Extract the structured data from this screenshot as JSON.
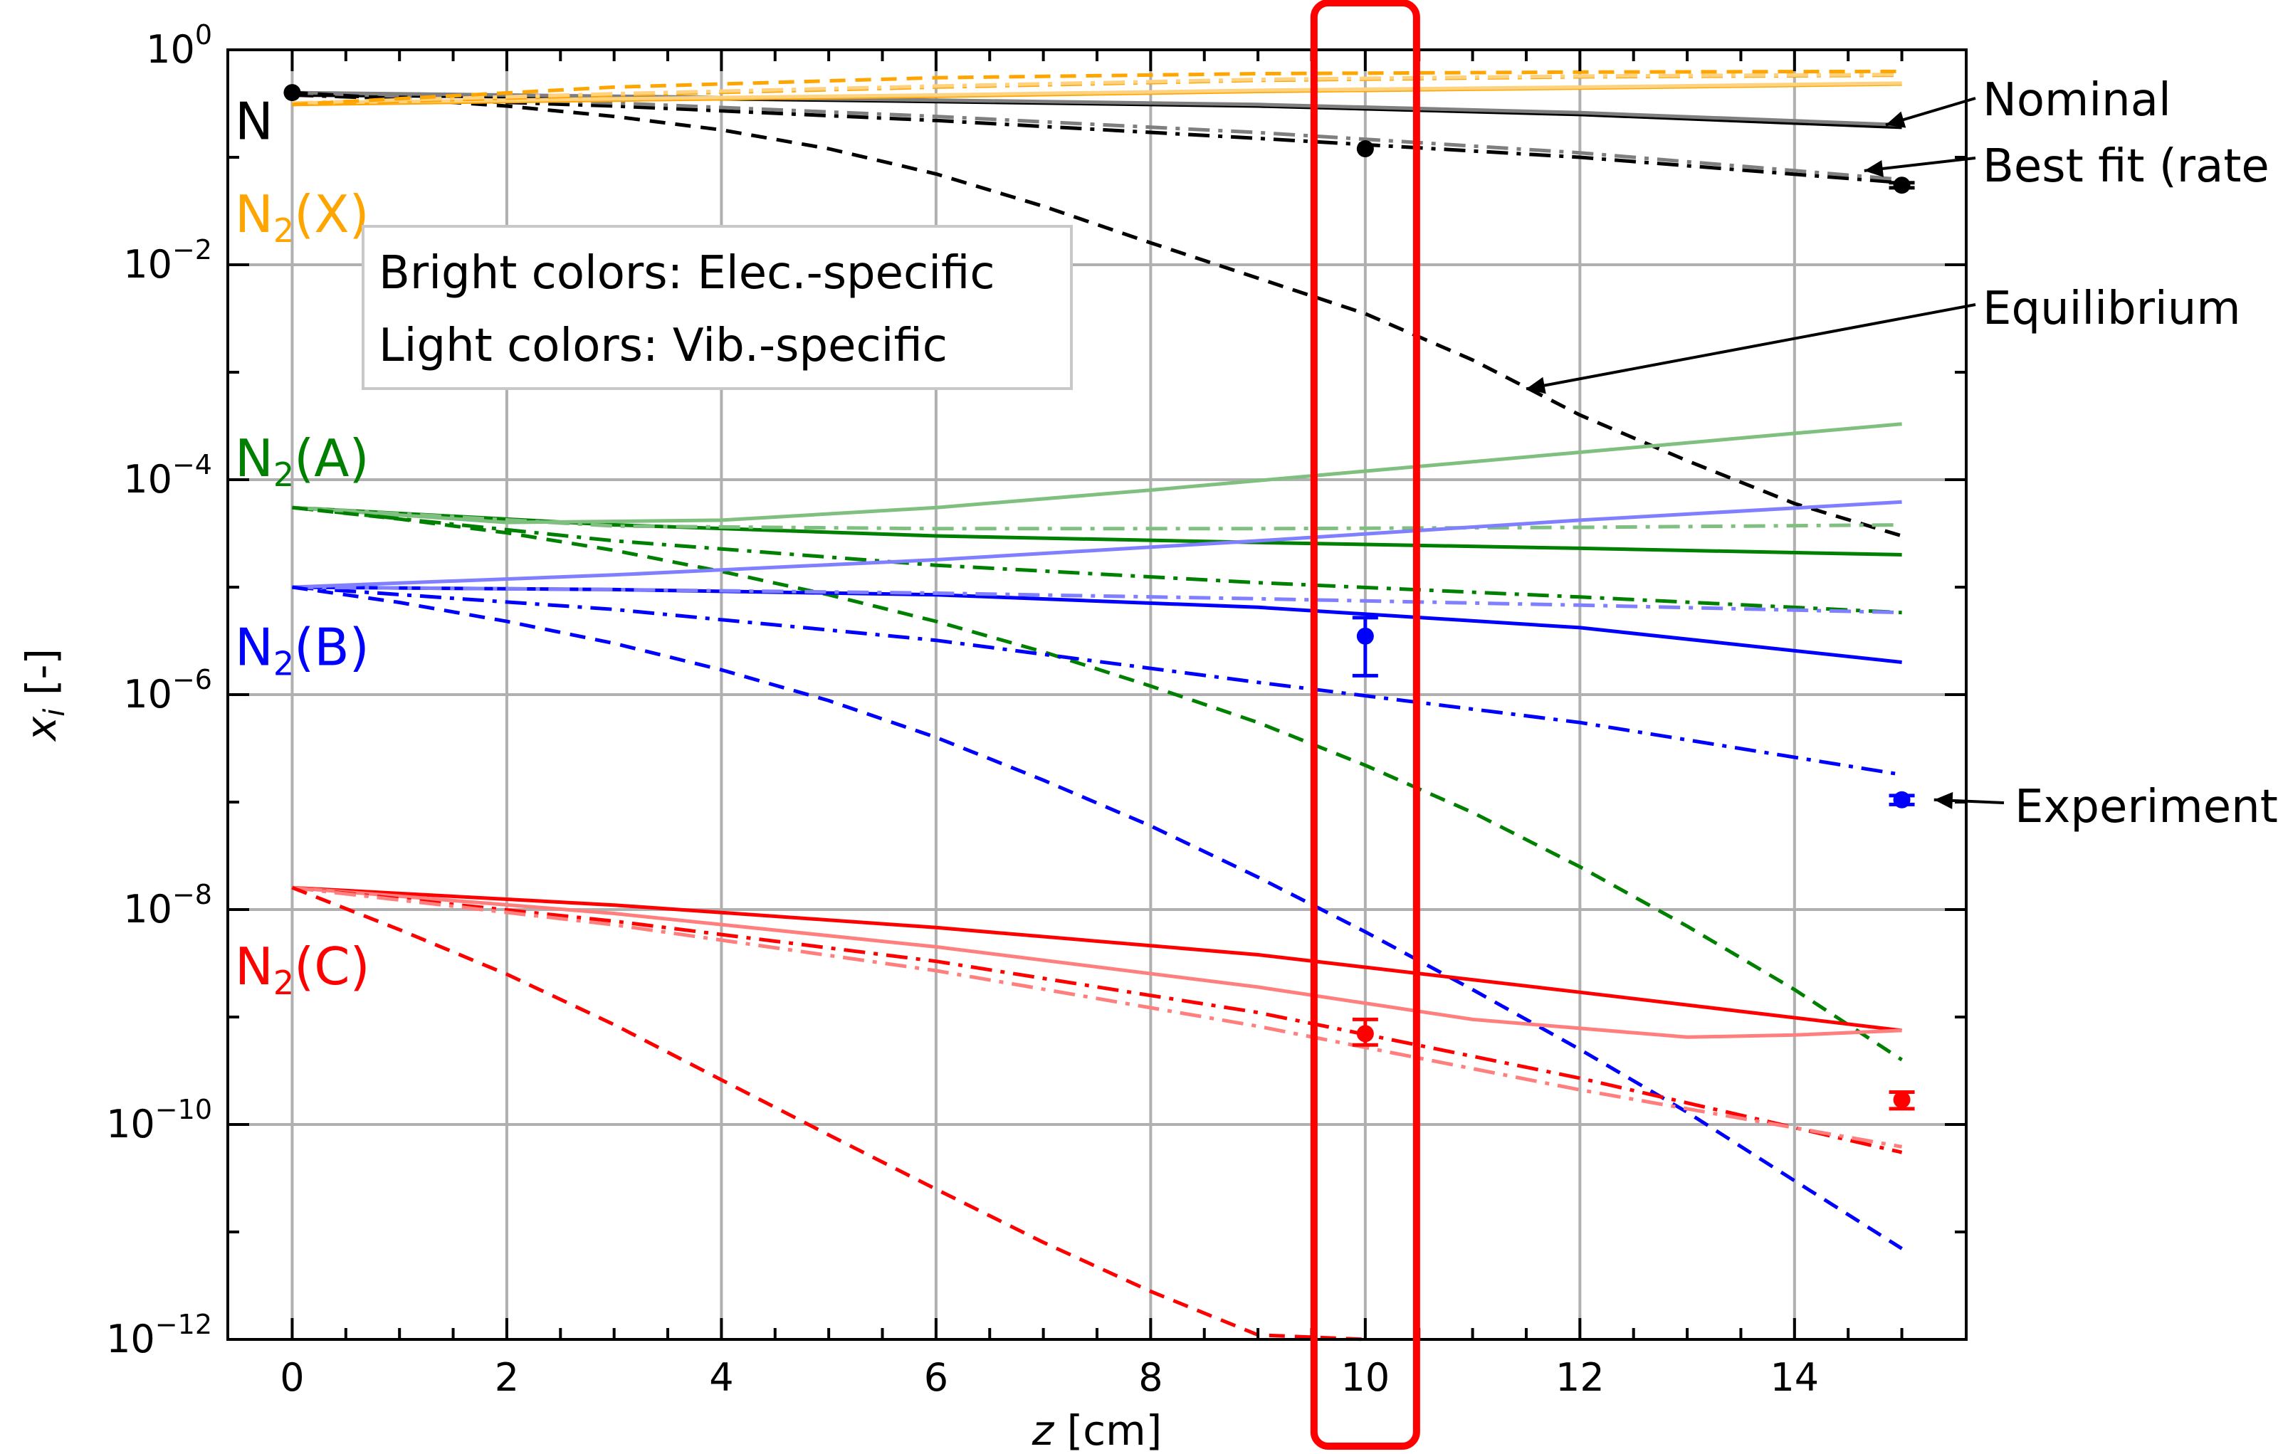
{
  "chart_data": {
    "type": "line",
    "title": "",
    "xlabel": "z [cm]",
    "ylabel": "x_i [-]",
    "yscale": "log",
    "xlim": [
      -0.6,
      15.6
    ],
    "ylim": [
      1e-12,
      1
    ],
    "x_ticks": [
      0,
      2,
      4,
      6,
      8,
      10,
      12,
      14
    ],
    "x_tick_labels": [
      "0",
      "2",
      "4",
      "6",
      "8",
      "10",
      "12",
      "14"
    ],
    "y_ticks": [
      {
        "base": "10",
        "exp": "0",
        "value": 1
      },
      {
        "base": "10",
        "exp": "−2",
        "value": 0.01
      },
      {
        "base": "10",
        "exp": "−4",
        "value": 0.0001
      },
      {
        "base": "10",
        "exp": "−6",
        "value": 1e-06
      },
      {
        "base": "10",
        "exp": "−8",
        "value": 1e-08
      },
      {
        "base": "10",
        "exp": "−10",
        "value": 1e-10
      },
      {
        "base": "10",
        "exp": "−12",
        "value": 1e-12
      }
    ],
    "grid": true,
    "colors": {
      "N": "#000000",
      "N_light": "#7f7f7f",
      "N2X": "#ffa500",
      "N2X_light": "#ffd280",
      "N2A": "#008000",
      "N2A_light": "#7fbf7f",
      "N2B": "#0000ff",
      "N2B_light": "#7f7fff",
      "N2C": "#ff0000",
      "N2C_light": "#ff7f7f",
      "highlight": "#ff0000"
    },
    "species_labels": [
      {
        "text": "N",
        "color": "#000000",
        "y": 0.22
      },
      {
        "main": "N",
        "sub": "2",
        "state": "(X)",
        "color": "#ffa500",
        "y": 0.03
      },
      {
        "main": "N",
        "sub": "2",
        "state": "(A)",
        "color": "#008000",
        "y": 0.00016
      },
      {
        "main": "N",
        "sub": "2",
        "state": "(B)",
        "color": "#0000ff",
        "y": 2.8e-06
      },
      {
        "main": "N",
        "sub": "2",
        "state": "(C)",
        "color": "#ff0000",
        "y": 3e-09
      }
    ],
    "legend_box": {
      "position": "upper-left",
      "lines": [
        "Bright colors: Elec.-specific",
        "Light colors: Vib.-specific"
      ]
    },
    "annotations": [
      {
        "text": "Nominal",
        "arrow_to": [
          14.85,
          0.2
        ]
      },
      {
        "text": "Best fit (rate",
        "arrow_to": [
          14.65,
          0.075
        ]
      },
      {
        "text": "Equilibrium",
        "arrow_to": [
          11.5,
          0.0007
        ]
      },
      {
        "text": "Experiment",
        "arrow_to": [
          15.3,
          1.05e-07
        ]
      }
    ],
    "highlight_x": 10,
    "series": [
      {
        "species": "N",
        "variant": "elec",
        "style": "solid",
        "x": [
          0,
          3,
          6,
          9,
          12,
          15
        ],
        "y": [
          0.38,
          0.36,
          0.33,
          0.3,
          0.25,
          0.19
        ]
      },
      {
        "species": "N",
        "variant": "vib",
        "style": "solid",
        "x": [
          0,
          3,
          6,
          9,
          12,
          15
        ],
        "y": [
          0.4,
          0.37,
          0.34,
          0.31,
          0.26,
          0.2
        ]
      },
      {
        "species": "N",
        "variant": "elec",
        "style": "dashdot",
        "x": [
          0,
          3,
          6,
          9,
          12,
          15
        ],
        "y": [
          0.38,
          0.3,
          0.22,
          0.15,
          0.1,
          0.058
        ]
      },
      {
        "species": "N",
        "variant": "vib",
        "style": "dashdot",
        "x": [
          0,
          3,
          6,
          9,
          12,
          15
        ],
        "y": [
          0.4,
          0.32,
          0.24,
          0.17,
          0.11,
          0.062
        ]
      },
      {
        "species": "N",
        "variant": "elec",
        "style": "dashed",
        "x": [
          0,
          1,
          2,
          3,
          4,
          5,
          6,
          7,
          8,
          9,
          10,
          11,
          12,
          13,
          14,
          15
        ],
        "y": [
          0.4,
          0.35,
          0.3,
          0.24,
          0.18,
          0.12,
          0.07,
          0.035,
          0.016,
          0.0075,
          0.0035,
          0.0013,
          0.0004,
          0.00015,
          6e-05,
          3e-05
        ]
      },
      {
        "species": "N2X",
        "variant": "elec",
        "style": "solid",
        "x": [
          0,
          3,
          6,
          9,
          12,
          15
        ],
        "y": [
          0.31,
          0.34,
          0.37,
          0.41,
          0.44,
          0.48
        ]
      },
      {
        "species": "N2X",
        "variant": "vib",
        "style": "solid",
        "x": [
          0,
          3,
          6,
          9,
          12,
          15
        ],
        "y": [
          0.32,
          0.35,
          0.38,
          0.42,
          0.45,
          0.49
        ]
      },
      {
        "species": "N2X",
        "variant": "elec",
        "style": "dashdot",
        "x": [
          0,
          3,
          6,
          9,
          12,
          15
        ],
        "y": [
          0.31,
          0.38,
          0.45,
          0.52,
          0.56,
          0.58
        ]
      },
      {
        "species": "N2X",
        "variant": "vib",
        "style": "dashdot",
        "x": [
          0,
          3,
          6,
          9,
          12,
          15
        ],
        "y": [
          0.32,
          0.39,
          0.46,
          0.53,
          0.57,
          0.59
        ]
      },
      {
        "species": "N2X",
        "variant": "elec",
        "style": "dashed",
        "x": [
          0,
          3,
          6,
          9,
          12,
          15
        ],
        "y": [
          0.31,
          0.45,
          0.55,
          0.6,
          0.62,
          0.63
        ]
      },
      {
        "species": "N2A",
        "variant": "elec",
        "style": "solid",
        "x": [
          0,
          3,
          6,
          9,
          12,
          15
        ],
        "y": [
          5.5e-05,
          3.8e-05,
          3e-05,
          2.6e-05,
          2.3e-05,
          2e-05
        ]
      },
      {
        "species": "N2A",
        "variant": "vib",
        "style": "solid",
        "x": [
          0,
          2,
          4,
          6,
          8,
          10,
          12,
          14,
          15
        ],
        "y": [
          5.5e-05,
          4e-05,
          4.2e-05,
          5.5e-05,
          8e-05,
          0.00012,
          0.00018,
          0.00027,
          0.00033
        ]
      },
      {
        "species": "N2A",
        "variant": "elec",
        "style": "dashdot",
        "x": [
          0,
          3,
          6,
          9,
          12,
          15
        ],
        "y": [
          5.5e-05,
          2.7e-05,
          1.6e-05,
          1.1e-05,
          8.1e-06,
          5.8e-06
        ]
      },
      {
        "species": "N2A",
        "variant": "vib",
        "style": "dashdot",
        "x": [
          0,
          3,
          6,
          9,
          12,
          15
        ],
        "y": [
          5.5e-05,
          3.7e-05,
          3.5e-05,
          3.5e-05,
          3.6e-05,
          3.8e-05
        ]
      },
      {
        "species": "N2A",
        "variant": "elec",
        "style": "dashed",
        "x": [
          0,
          1,
          2,
          3,
          4,
          5,
          6,
          7,
          8,
          9,
          10,
          11,
          12,
          13,
          14,
          15
        ],
        "y": [
          5.5e-05,
          4.3e-05,
          3.2e-05,
          2.2e-05,
          1.4e-05,
          8.5e-06,
          4.8e-06,
          2.5e-06,
          1.2e-06,
          5.5e-07,
          2.2e-07,
          8e-08,
          2.5e-08,
          7e-09,
          1.8e-09,
          4e-10
        ]
      },
      {
        "species": "N2B",
        "variant": "elec",
        "style": "solid",
        "x": [
          0,
          3,
          6,
          9,
          12,
          15
        ],
        "y": [
          1e-05,
          9.5e-06,
          8.5e-06,
          6.5e-06,
          4.2e-06,
          2e-06
        ]
      },
      {
        "species": "N2B",
        "variant": "vib",
        "style": "solid",
        "x": [
          0,
          3,
          6,
          9,
          12,
          15
        ],
        "y": [
          1e-05,
          1.3e-05,
          1.8e-05,
          2.7e-05,
          4.2e-05,
          6.2e-05
        ]
      },
      {
        "species": "N2B",
        "variant": "elec",
        "style": "dashdot",
        "x": [
          0,
          3,
          6,
          9,
          12,
          15
        ],
        "y": [
          1e-05,
          6.2e-06,
          3.2e-06,
          1.3e-06,
          5.5e-07,
          1.8e-07
        ]
      },
      {
        "species": "N2B",
        "variant": "vib",
        "style": "dashdot",
        "x": [
          0,
          3,
          6,
          9,
          12,
          15
        ],
        "y": [
          1e-05,
          9.5e-06,
          8.8e-06,
          7.8e-06,
          6.8e-06,
          5.8e-06
        ]
      },
      {
        "species": "N2B",
        "variant": "elec",
        "style": "dashed",
        "x": [
          0,
          1,
          2,
          3,
          4,
          5,
          6,
          7,
          8,
          9,
          10,
          11,
          12,
          13,
          14,
          15
        ],
        "y": [
          1e-05,
          7.2e-06,
          4.8e-06,
          3e-06,
          1.7e-06,
          8.8e-07,
          4e-07,
          1.6e-07,
          6e-08,
          2e-08,
          6.2e-09,
          1.8e-09,
          5e-10,
          1.3e-10,
          3e-11,
          7e-12
        ]
      },
      {
        "species": "N2C",
        "variant": "elec",
        "style": "solid",
        "x": [
          0,
          3,
          6,
          9,
          12,
          15
        ],
        "y": [
          1.6e-08,
          1.1e-08,
          6.8e-09,
          3.8e-09,
          1.7e-09,
          7.5e-10
        ]
      },
      {
        "species": "N2C",
        "variant": "vib",
        "style": "solid",
        "x": [
          0,
          3,
          6,
          9,
          11,
          13,
          14,
          15
        ],
        "y": [
          1.6e-08,
          9.2e-09,
          4.5e-09,
          1.9e-09,
          9.5e-10,
          6.5e-10,
          6.8e-10,
          7.5e-10
        ]
      },
      {
        "species": "N2C",
        "variant": "elec",
        "style": "dashdot",
        "x": [
          0,
          3,
          6,
          9,
          12,
          15
        ],
        "y": [
          1.6e-08,
          7.8e-09,
          3.3e-09,
          1.1e-09,
          2.7e-10,
          5.5e-11
        ]
      },
      {
        "species": "N2C",
        "variant": "vib",
        "style": "dashdot",
        "x": [
          0,
          3,
          6,
          9,
          12,
          15
        ],
        "y": [
          1.6e-08,
          7.2e-09,
          2.7e-09,
          8.2e-10,
          2.1e-10,
          6.2e-11
        ]
      },
      {
        "species": "N2C",
        "variant": "elec",
        "style": "dashed",
        "x": [
          0,
          1,
          2,
          3,
          4,
          5,
          6,
          7,
          8,
          9,
          10
        ],
        "y": [
          1.6e-08,
          6.5e-09,
          2.5e-09,
          8.5e-10,
          2.6e-10,
          8e-11,
          2.5e-11,
          8e-12,
          2.8e-12,
          1.1e-12,
          1e-12
        ]
      }
    ],
    "experiment": [
      {
        "species": "N",
        "x": 0,
        "y": 0.4,
        "err": [
          0.4,
          0.4
        ]
      },
      {
        "species": "N",
        "x": 10,
        "y": 0.12,
        "err": [
          0.12,
          0.12
        ]
      },
      {
        "species": "N",
        "x": 15,
        "y": 0.055,
        "err": [
          0.052,
          0.058
        ]
      },
      {
        "species": "N2B",
        "x": 10,
        "y": 3.5e-06,
        "err": [
          1.5e-06,
          5.2e-06
        ]
      },
      {
        "species": "N2B",
        "x": 15,
        "y": 1.05e-07,
        "err": [
          9.5e-08,
          1.15e-07
        ]
      },
      {
        "species": "N2C",
        "x": 10,
        "y": 7e-10,
        "err": [
          5.5e-10,
          9.5e-10
        ]
      },
      {
        "species": "N2C",
        "x": 15,
        "y": 1.7e-10,
        "err": [
          1.4e-10,
          2e-10
        ]
      }
    ]
  }
}
